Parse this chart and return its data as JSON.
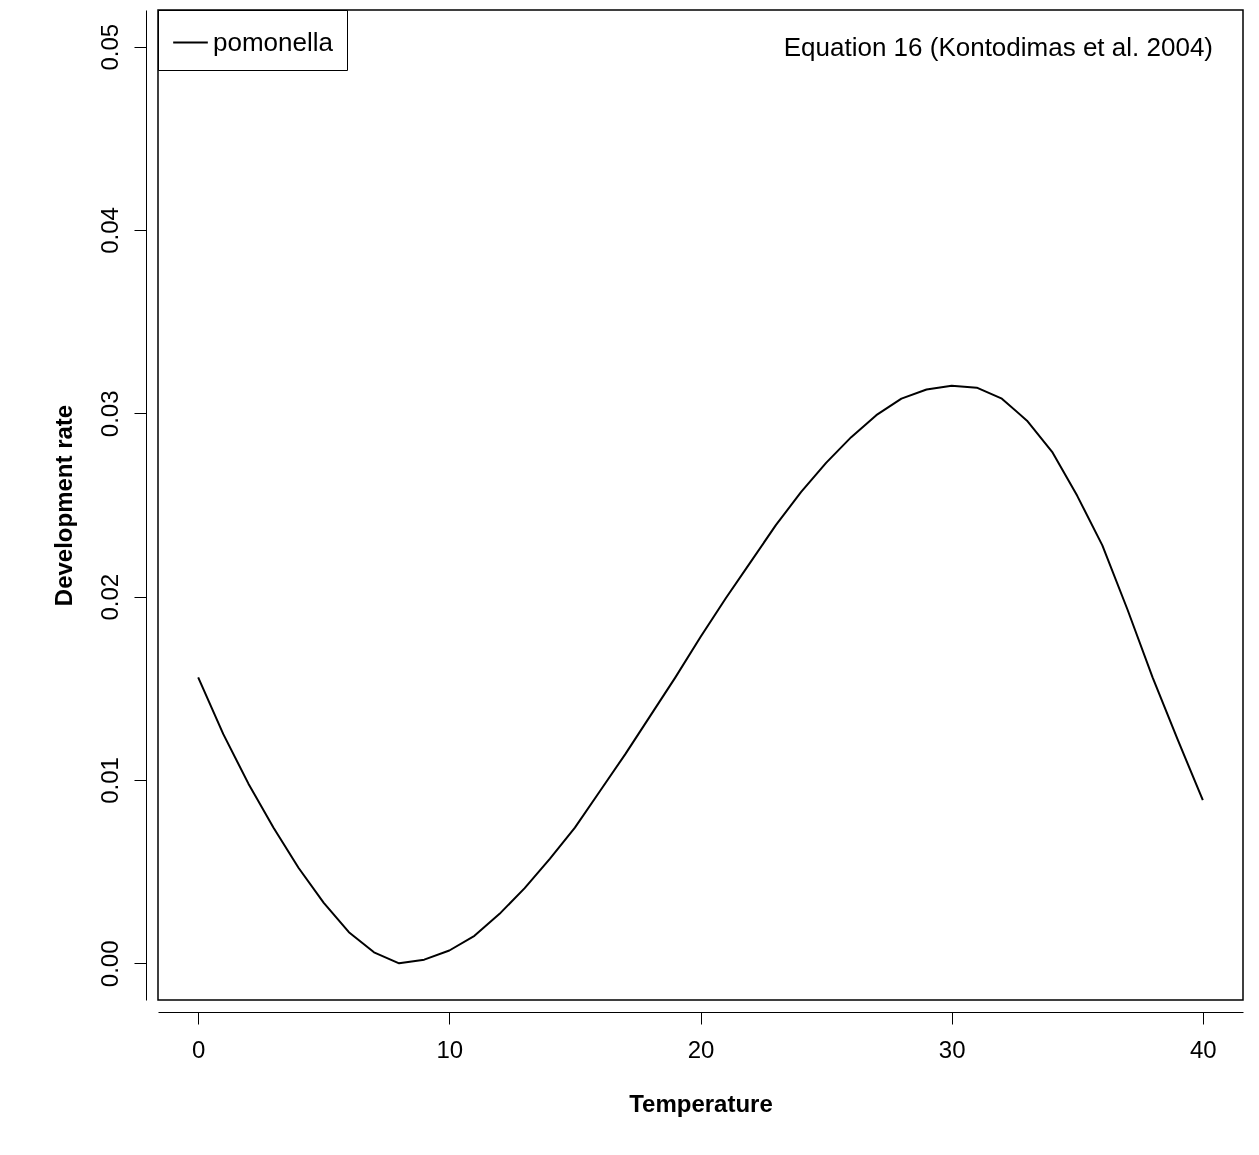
{
  "chart_data": {
    "type": "line",
    "xlabel": "Temperature",
    "ylabel": "Development rate",
    "annotations": [
      "Equation 16 (Kontodimas et al. 2004)"
    ],
    "x": [
      0,
      1,
      2,
      3,
      4,
      5,
      6,
      7,
      8,
      9,
      10,
      11,
      12,
      13,
      14,
      15,
      16,
      17,
      18,
      19,
      20,
      21,
      22,
      23,
      24,
      25,
      26,
      27,
      28,
      29,
      30,
      31,
      32,
      33,
      34,
      35,
      36,
      37,
      38,
      39,
      40
    ],
    "series": [
      {
        "name": "pomonella",
        "color": "#000000",
        "values": [
          0.0156,
          0.0125,
          0.0098,
          0.0074,
          0.0052,
          0.0033,
          0.0017,
          0.0006,
          0.0,
          0.0002,
          0.0007,
          0.0015,
          0.0027,
          0.0041,
          0.0057,
          0.0074,
          0.0094,
          0.0114,
          0.0135,
          0.0156,
          0.0178,
          0.0199,
          0.0219,
          0.0239,
          0.0257,
          0.0273,
          0.0287,
          0.0299,
          0.0308,
          0.0313,
          0.0315,
          0.0314,
          0.0308,
          0.0296,
          0.0279,
          0.0255,
          0.0228,
          0.0193,
          0.0156,
          0.0122,
          0.0089
        ]
      }
    ],
    "xlim": [
      -1.6,
      41.6
    ],
    "ylim": [
      -0.002,
      0.052
    ],
    "xticks": [
      0,
      10,
      20,
      30,
      40
    ],
    "yticks": [
      {
        "value": 0,
        "label": "0.00"
      },
      {
        "value": 0.01,
        "label": "0.01"
      },
      {
        "value": 0.02,
        "label": "0.02"
      },
      {
        "value": 0.03,
        "label": "0.03"
      },
      {
        "value": 0.04,
        "label": "0.04"
      },
      {
        "value": 0.05,
        "label": "0.05"
      }
    ],
    "legend": "top left",
    "grid": false,
    "marker": "none",
    "line_style": "solid"
  }
}
